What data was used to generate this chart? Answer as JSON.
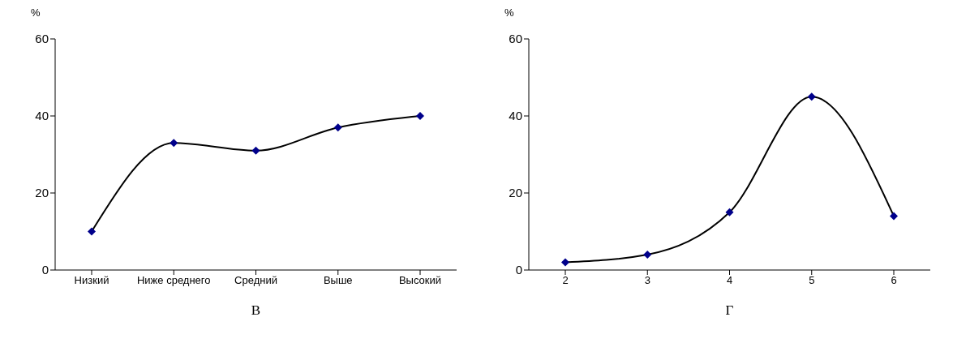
{
  "chart_data": [
    {
      "type": "line",
      "ylabel": "%",
      "xlabel": "В",
      "categories": [
        "Низкий",
        "Ниже среднего",
        "Средний",
        "Выше",
        "Высокий"
      ],
      "series": [
        {
          "color": "#00008b",
          "values": [
            10,
            33,
            31,
            37,
            40
          ]
        }
      ],
      "ylim": [
        0,
        60
      ],
      "yticks": [
        0,
        20,
        40,
        60
      ],
      "grid": false,
      "legend": false,
      "marker": "diamond",
      "line_style": "solid"
    },
    {
      "type": "line",
      "ylabel": "%",
      "xlabel": "Г",
      "categories": [
        "2",
        "3",
        "4",
        "5",
        "6"
      ],
      "series": [
        {
          "color": "#00008b",
          "values": [
            2,
            4,
            15,
            45,
            14
          ]
        }
      ],
      "ylim": [
        0,
        60
      ],
      "yticks": [
        0,
        20,
        40,
        60
      ],
      "grid": false,
      "legend": false,
      "marker": "diamond",
      "line_style": "solid"
    }
  ]
}
